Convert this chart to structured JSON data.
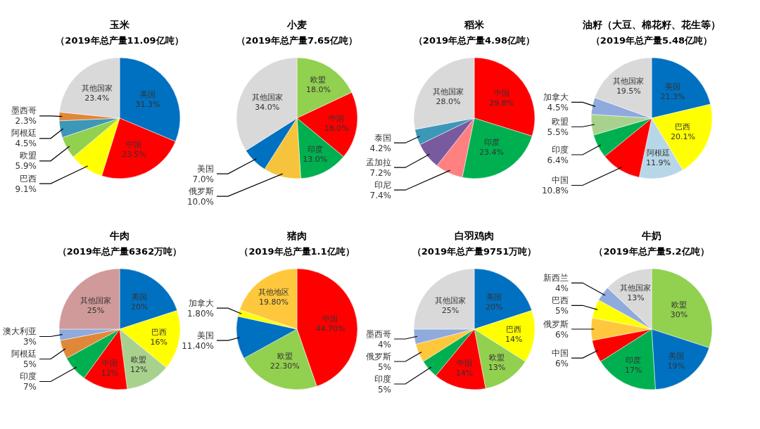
{
  "chart_data": [
    {
      "type": "pie",
      "title": "玉米",
      "subtitle": "（2019年总产量11.09亿吨）",
      "categories": [
        "美国",
        "中国",
        "巴西",
        "欧盟",
        "阿根廷",
        "墨西哥",
        "其他国家"
      ],
      "values": [
        31.3,
        23.5,
        9.1,
        5.9,
        4.5,
        2.3,
        23.4
      ],
      "value_labels": [
        "31.3%",
        "23.5%",
        "9.1%",
        "5.9%",
        "4.5%",
        "2.3%",
        "23.4%"
      ],
      "colors": [
        "#0070c0",
        "#ff0000",
        "#ffff00",
        "#92d050",
        "#3d97b8",
        "#e0883a",
        "#d9d9d9"
      ]
    },
    {
      "type": "pie",
      "title": "小麦",
      "subtitle": "（2019年总产量7.65亿吨）",
      "categories": [
        "欧盟",
        "中国",
        "印度",
        "俄罗斯",
        "美国",
        "其他国家"
      ],
      "values": [
        18.0,
        18.0,
        13.0,
        10.0,
        7.0,
        34.0
      ],
      "value_labels": [
        "18.0%",
        "18.0%",
        "13.0%",
        "10.0%",
        "7.0%",
        "34.0%"
      ],
      "colors": [
        "#92d050",
        "#ff0000",
        "#00b050",
        "#f6c43c",
        "#0070c0",
        "#d9d9d9"
      ]
    },
    {
      "type": "pie",
      "title": "稻米",
      "subtitle": "（2019年总产量4.98亿吨）",
      "categories": [
        "中国",
        "印度",
        "印尼",
        "孟加拉",
        "泰国",
        "其他国家"
      ],
      "values": [
        29.8,
        23.4,
        7.4,
        7.2,
        4.2,
        28.0
      ],
      "value_labels": [
        "29.8%",
        "23.4%",
        "7.4%",
        "7.2%",
        "4.2%",
        "28.0%"
      ],
      "colors": [
        "#ff0000",
        "#00b050",
        "#ff8080",
        "#7a5a9e",
        "#3d97b8",
        "#d9d9d9"
      ]
    },
    {
      "type": "pie",
      "title": "油籽（大豆、棉花籽、花生等）",
      "subtitle": "（2019年总产量5.48亿吨）",
      "categories": [
        "美国",
        "巴西",
        "阿根廷",
        "中国",
        "印度",
        "欧盟",
        "加拿大",
        "其他国家"
      ],
      "values": [
        21.3,
        20.1,
        11.9,
        10.8,
        6.4,
        5.5,
        4.5,
        19.5
      ],
      "value_labels": [
        "21.3%",
        "20.1%",
        "11.9%",
        "10.8%",
        "6.4%",
        "5.5%",
        "4.5%",
        "19.5%"
      ],
      "colors": [
        "#0070c0",
        "#ffff00",
        "#b7d7e8",
        "#ff0000",
        "#00b050",
        "#a9d18e",
        "#8faadc",
        "#d9d9d9"
      ]
    },
    {
      "type": "pie",
      "title": "牛肉",
      "subtitle": "（2019年总产量6362万吨）",
      "categories": [
        "美国",
        "巴西",
        "欧盟",
        "中国",
        "印度",
        "阿根廷",
        "澳大利亚",
        "其他国家"
      ],
      "values": [
        20,
        16,
        12,
        12,
        7,
        5,
        3,
        25
      ],
      "value_labels": [
        "20%",
        "16%",
        "12%",
        "12%",
        "7%",
        "5%",
        "3%",
        "25%"
      ],
      "colors": [
        "#0070c0",
        "#ffff00",
        "#a9d18e",
        "#ff0000",
        "#00b050",
        "#e0883a",
        "#8faadc",
        "#d09a9a"
      ]
    },
    {
      "type": "pie",
      "title": "猪肉",
      "subtitle": "（2019年总产量1.1亿吨）",
      "categories": [
        "中国",
        "欧盟",
        "美国",
        "加拿大",
        "其他地区"
      ],
      "values": [
        44.7,
        22.3,
        11.4,
        1.8,
        19.8
      ],
      "value_labels": [
        "44.70%",
        "22.30%",
        "11.40%",
        "1.80%",
        "19.80%"
      ],
      "colors": [
        "#ff0000",
        "#92d050",
        "#0070c0",
        "#ffff00",
        "#ffc83c"
      ]
    },
    {
      "type": "pie",
      "title": "白羽鸡肉",
      "subtitle": "（2019年总产量9751万吨）",
      "categories": [
        "美国",
        "巴西",
        "欧盟",
        "中国",
        "印度",
        "俄罗斯",
        "墨西哥",
        "其他国家"
      ],
      "values": [
        20,
        14,
        13,
        14,
        5,
        5,
        4,
        25
      ],
      "value_labels": [
        "20%",
        "14%",
        "13%",
        "14%",
        "5%",
        "5%",
        "4%",
        "25%"
      ],
      "colors": [
        "#0070c0",
        "#ffff00",
        "#92d050",
        "#ff0000",
        "#00b050",
        "#ffc83c",
        "#8faadc",
        "#d9d9d9"
      ]
    },
    {
      "type": "pie",
      "title": "牛奶",
      "subtitle": "（2019年总产量5.2亿吨）",
      "categories": [
        "欧盟",
        "美国",
        "印度",
        "中国",
        "俄罗斯",
        "巴西",
        "新西兰",
        "其他国家"
      ],
      "values": [
        30,
        19,
        17,
        6,
        6,
        5,
        4,
        13
      ],
      "value_labels": [
        "30%",
        "19%",
        "17%",
        "6%",
        "6%",
        "5%",
        "4%",
        "13%"
      ],
      "colors": [
        "#92d050",
        "#0070c0",
        "#00b050",
        "#ff0000",
        "#ffc83c",
        "#ffff00",
        "#8faadc",
        "#d9d9d9"
      ]
    }
  ]
}
